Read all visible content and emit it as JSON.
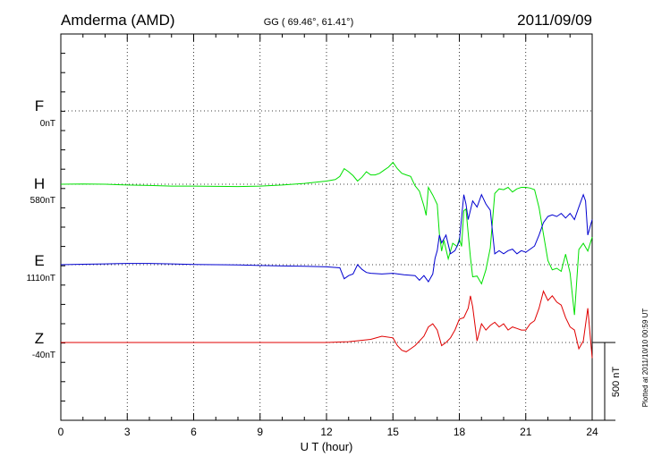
{
  "header": {
    "station": "Amderma (AMD)",
    "coords": "GG ( 69.46°,  61.41°)",
    "date": "2011/09/09"
  },
  "footer": {
    "plotted": "Plotted at 2011/10/10 00:59 UT"
  },
  "chart_data": {
    "type": "line",
    "title": "",
    "xlabel": "U T (hour)",
    "ylabel": "",
    "xlim": [
      0,
      24
    ],
    "x_ticks": [
      0,
      3,
      6,
      9,
      12,
      15,
      18,
      21,
      24
    ],
    "grid": true,
    "scale_bar": {
      "label": "500 nT",
      "value_nT": 500
    },
    "series": [
      {
        "name": "F",
        "baseline_label": "0nT",
        "color": "#ffa500",
        "points": []
      },
      {
        "name": "H",
        "baseline_label": "580nT",
        "color": "#00e000",
        "points": [
          [
            0,
            580
          ],
          [
            1,
            582
          ],
          [
            2,
            580
          ],
          [
            3,
            575
          ],
          [
            4,
            572
          ],
          [
            5,
            568
          ],
          [
            6,
            568
          ],
          [
            7,
            566
          ],
          [
            8,
            565
          ],
          [
            9,
            568
          ],
          [
            10,
            575
          ],
          [
            11,
            585
          ],
          [
            12,
            600
          ],
          [
            12.4,
            610
          ],
          [
            12.6,
            630
          ],
          [
            12.8,
            680
          ],
          [
            13.0,
            660
          ],
          [
            13.2,
            635
          ],
          [
            13.4,
            600
          ],
          [
            13.6,
            625
          ],
          [
            13.8,
            660
          ],
          [
            14.0,
            640
          ],
          [
            14.2,
            640
          ],
          [
            14.4,
            650
          ],
          [
            14.6,
            670
          ],
          [
            14.8,
            690
          ],
          [
            15.0,
            720
          ],
          [
            15.2,
            680
          ],
          [
            15.4,
            650
          ],
          [
            15.6,
            640
          ],
          [
            15.8,
            630
          ],
          [
            16.0,
            570
          ],
          [
            16.2,
            535
          ],
          [
            16.4,
            440
          ],
          [
            16.5,
            380
          ],
          [
            16.6,
            560
          ],
          [
            16.8,
            510
          ],
          [
            17.0,
            450
          ],
          [
            17.1,
            260
          ],
          [
            17.2,
            150
          ],
          [
            17.3,
            220
          ],
          [
            17.5,
            100
          ],
          [
            17.7,
            200
          ],
          [
            17.9,
            180
          ],
          [
            18.0,
            230
          ],
          [
            18.1,
            180
          ],
          [
            18.2,
            410
          ],
          [
            18.3,
            420
          ],
          [
            18.5,
            110
          ],
          [
            18.6,
            -15
          ],
          [
            18.8,
            -10
          ],
          [
            19.0,
            -60
          ],
          [
            19.2,
            30
          ],
          [
            19.4,
            170
          ],
          [
            19.6,
            520
          ],
          [
            19.8,
            550
          ],
          [
            20.0,
            545
          ],
          [
            20.2,
            560
          ],
          [
            20.4,
            530
          ],
          [
            20.6,
            550
          ],
          [
            20.8,
            560
          ],
          [
            21.0,
            560
          ],
          [
            21.2,
            555
          ],
          [
            21.4,
            545
          ],
          [
            21.6,
            430
          ],
          [
            21.8,
            260
          ],
          [
            22.0,
            90
          ],
          [
            22.2,
            30
          ],
          [
            22.4,
            40
          ],
          [
            22.6,
            20
          ],
          [
            22.8,
            130
          ],
          [
            23.0,
            10
          ],
          [
            23.2,
            -260
          ],
          [
            23.4,
            160
          ],
          [
            23.6,
            200
          ],
          [
            23.8,
            150
          ],
          [
            24.0,
            240
          ]
        ]
      },
      {
        "name": "E",
        "baseline_label": "1110nT",
        "color": "#0000d0",
        "points": [
          [
            0,
            1110
          ],
          [
            1,
            1113
          ],
          [
            2,
            1115
          ],
          [
            3,
            1118
          ],
          [
            4,
            1118
          ],
          [
            5,
            1115
          ],
          [
            6,
            1112
          ],
          [
            7,
            1110
          ],
          [
            8,
            1108
          ],
          [
            9,
            1105
          ],
          [
            10,
            1102
          ],
          [
            11,
            1100
          ],
          [
            12,
            1096
          ],
          [
            12.6,
            1090
          ],
          [
            12.8,
            1020
          ],
          [
            13.0,
            1040
          ],
          [
            13.2,
            1050
          ],
          [
            13.4,
            1110
          ],
          [
            13.6,
            1080
          ],
          [
            13.8,
            1060
          ],
          [
            14.0,
            1055
          ],
          [
            14.5,
            1050
          ],
          [
            15.0,
            1055
          ],
          [
            15.5,
            1045
          ],
          [
            16.0,
            1040
          ],
          [
            16.2,
            1010
          ],
          [
            16.4,
            1040
          ],
          [
            16.6,
            1000
          ],
          [
            16.8,
            1050
          ],
          [
            16.9,
            1150
          ],
          [
            17.0,
            1200
          ],
          [
            17.1,
            1300
          ],
          [
            17.2,
            1250
          ],
          [
            17.4,
            1300
          ],
          [
            17.6,
            1180
          ],
          [
            17.8,
            1200
          ],
          [
            18.0,
            1260
          ],
          [
            18.2,
            1560
          ],
          [
            18.3,
            1500
          ],
          [
            18.4,
            1400
          ],
          [
            18.6,
            1520
          ],
          [
            18.8,
            1480
          ],
          [
            19.0,
            1560
          ],
          [
            19.2,
            1500
          ],
          [
            19.4,
            1460
          ],
          [
            19.6,
            1180
          ],
          [
            19.8,
            1200
          ],
          [
            20.0,
            1180
          ],
          [
            20.2,
            1200
          ],
          [
            20.4,
            1210
          ],
          [
            20.6,
            1180
          ],
          [
            20.8,
            1200
          ],
          [
            21.0,
            1190
          ],
          [
            21.2,
            1210
          ],
          [
            21.4,
            1230
          ],
          [
            21.6,
            1300
          ],
          [
            21.8,
            1380
          ],
          [
            22.0,
            1420
          ],
          [
            22.2,
            1430
          ],
          [
            22.4,
            1420
          ],
          [
            22.6,
            1440
          ],
          [
            22.8,
            1410
          ],
          [
            23.0,
            1440
          ],
          [
            23.2,
            1400
          ],
          [
            23.4,
            1480
          ],
          [
            23.6,
            1560
          ],
          [
            23.7,
            1520
          ],
          [
            23.8,
            1300
          ],
          [
            24.0,
            1400
          ]
        ]
      },
      {
        "name": "Z",
        "baseline_label": "-40nT",
        "color": "#e00000",
        "points": [
          [
            0,
            -40
          ],
          [
            2,
            -40
          ],
          [
            4,
            -40
          ],
          [
            6,
            -40
          ],
          [
            8,
            -40
          ],
          [
            10,
            -40
          ],
          [
            12,
            -40
          ],
          [
            13,
            -35
          ],
          [
            14,
            -20
          ],
          [
            14.5,
            0
          ],
          [
            15.0,
            -10
          ],
          [
            15.2,
            -60
          ],
          [
            15.4,
            -90
          ],
          [
            15.6,
            -100
          ],
          [
            15.8,
            -80
          ],
          [
            16.0,
            -60
          ],
          [
            16.2,
            -30
          ],
          [
            16.4,
            0
          ],
          [
            16.6,
            60
          ],
          [
            16.8,
            80
          ],
          [
            17.0,
            40
          ],
          [
            17.2,
            -60
          ],
          [
            17.4,
            -40
          ],
          [
            17.6,
            -10
          ],
          [
            17.8,
            40
          ],
          [
            18.0,
            110
          ],
          [
            18.2,
            120
          ],
          [
            18.4,
            180
          ],
          [
            18.5,
            260
          ],
          [
            18.6,
            190
          ],
          [
            18.8,
            -30
          ],
          [
            19.0,
            80
          ],
          [
            19.2,
            40
          ],
          [
            19.4,
            70
          ],
          [
            19.6,
            90
          ],
          [
            19.8,
            60
          ],
          [
            20.0,
            80
          ],
          [
            20.2,
            40
          ],
          [
            20.4,
            60
          ],
          [
            20.6,
            50
          ],
          [
            20.8,
            40
          ],
          [
            21.0,
            40
          ],
          [
            21.2,
            80
          ],
          [
            21.4,
            100
          ],
          [
            21.6,
            180
          ],
          [
            21.8,
            290
          ],
          [
            22.0,
            230
          ],
          [
            22.2,
            260
          ],
          [
            22.4,
            220
          ],
          [
            22.6,
            200
          ],
          [
            22.8,
            120
          ],
          [
            23.0,
            60
          ],
          [
            23.2,
            40
          ],
          [
            23.4,
            -80
          ],
          [
            23.6,
            -30
          ],
          [
            23.8,
            180
          ],
          [
            24.0,
            -140
          ]
        ]
      }
    ]
  }
}
